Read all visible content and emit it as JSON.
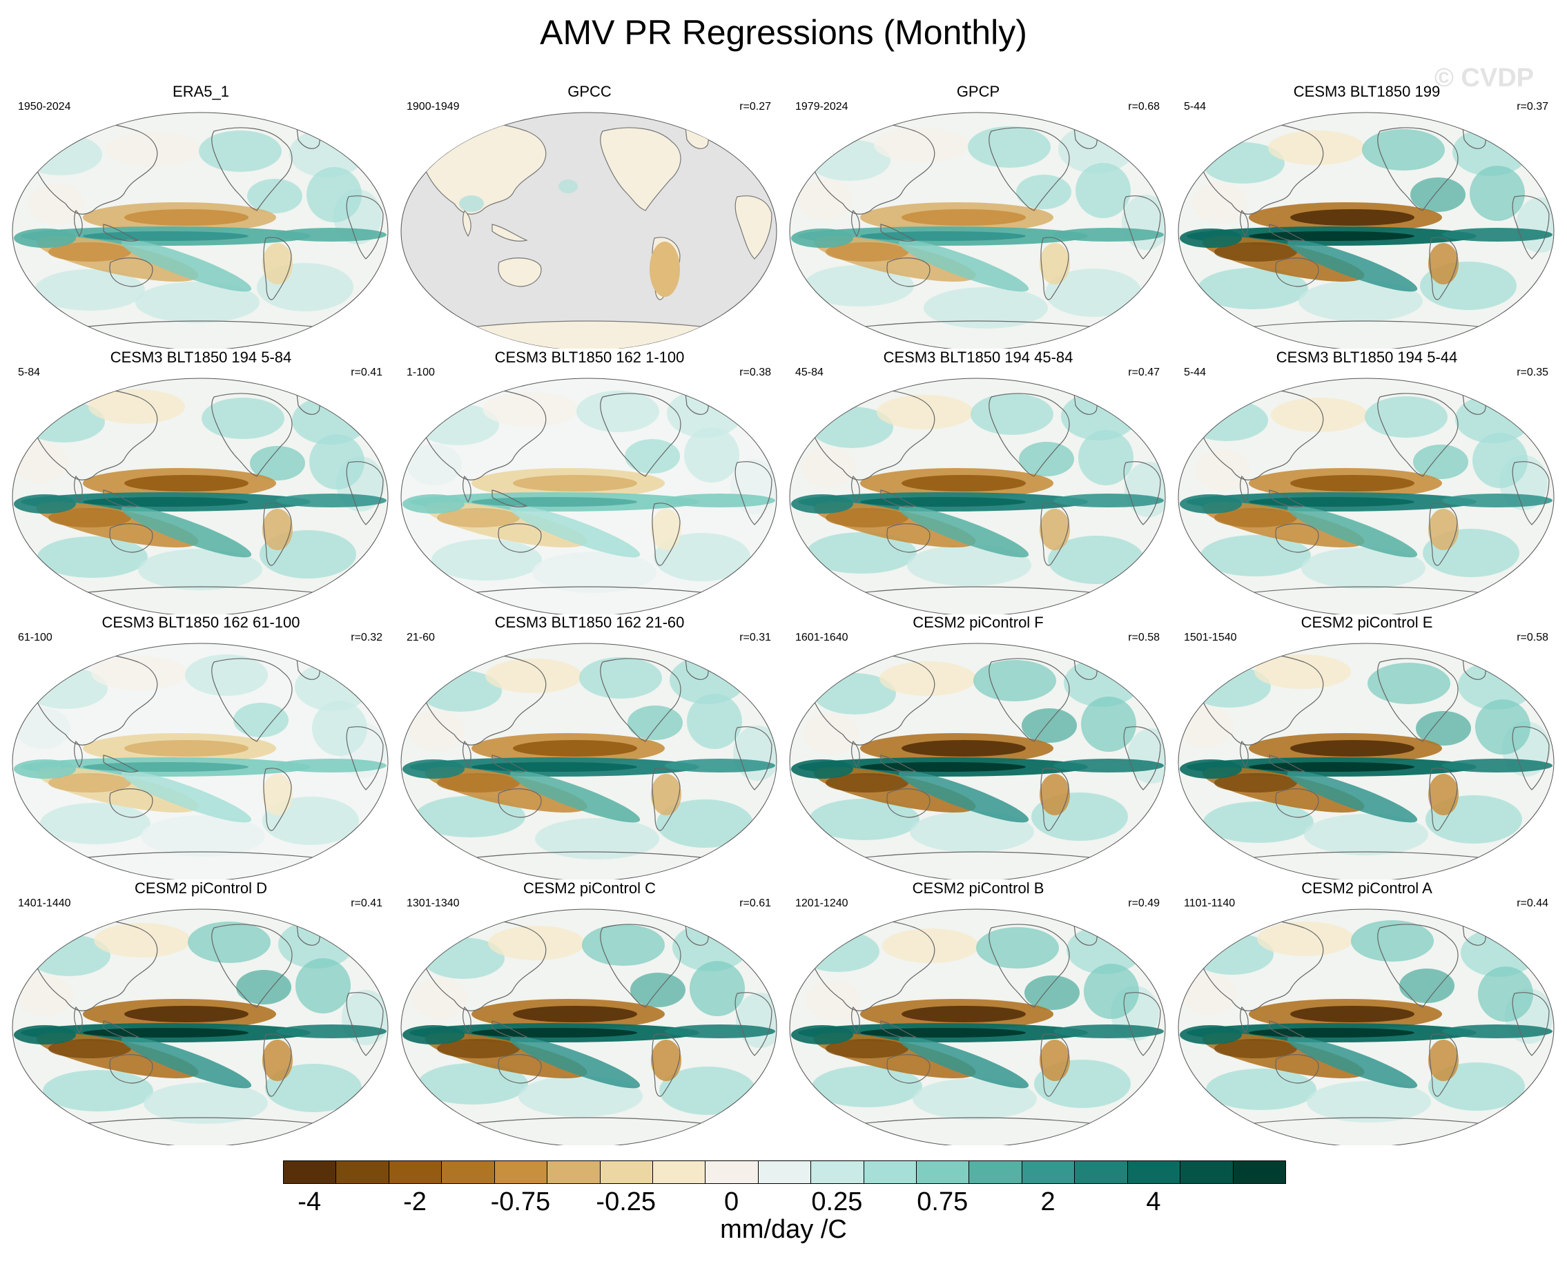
{
  "title": "AMV PR Regressions (Monthly)",
  "watermark": "© CVDP",
  "panels": [
    {
      "title": "ERA5_1",
      "period": "1950-2024",
      "r": "",
      "style": "obs"
    },
    {
      "title": "GPCC",
      "period": "1900-1949",
      "r": "r=0.27",
      "style": "landonly"
    },
    {
      "title": "GPCP",
      "period": "1979-2024",
      "r": "r=0.68",
      "style": "obs"
    },
    {
      "title": "CESM3 BLT1850 199",
      "period": "5-44",
      "r": "r=0.37",
      "style": "strong"
    },
    {
      "title": "CESM3 BLT1850 194 5-84",
      "period": "5-84",
      "r": "r=0.41",
      "style": "model"
    },
    {
      "title": "CESM3 BLT1850 162 1-100",
      "period": "1-100",
      "r": "r=0.38",
      "style": "weak"
    },
    {
      "title": "CESM3 BLT1850 194 45-84",
      "period": "45-84",
      "r": "r=0.47",
      "style": "model"
    },
    {
      "title": "CESM3 BLT1850 194 5-44",
      "period": "5-44",
      "r": "r=0.35",
      "style": "model"
    },
    {
      "title": "CESM3 BLT1850 162 61-100",
      "period": "61-100",
      "r": "r=0.32",
      "style": "weak"
    },
    {
      "title": "CESM3 BLT1850 162 21-60",
      "period": "21-60",
      "r": "r=0.31",
      "style": "model"
    },
    {
      "title": "CESM2 piControl F",
      "period": "1601-1640",
      "r": "r=0.58",
      "style": "strong"
    },
    {
      "title": "CESM2 piControl E",
      "period": "1501-1540",
      "r": "r=0.58",
      "style": "strong"
    },
    {
      "title": "CESM2 piControl D",
      "period": "1401-1440",
      "r": "r=0.41",
      "style": "strong"
    },
    {
      "title": "CESM2 piControl C",
      "period": "1301-1340",
      "r": "r=0.61",
      "style": "strong"
    },
    {
      "title": "CESM2 piControl B",
      "period": "1201-1240",
      "r": "r=0.49",
      "style": "strong"
    },
    {
      "title": "CESM2 piControl A",
      "period": "1101-1140",
      "r": "r=0.44",
      "style": "strong"
    }
  ],
  "colorbar": {
    "colors": [
      "#573009",
      "#7a4a0c",
      "#955b12",
      "#b07425",
      "#c88f3f",
      "#d9b26f",
      "#ecd7a3",
      "#f5e9c9",
      "#f5f1ea",
      "#e8f2f1",
      "#c9eae6",
      "#a6dfd7",
      "#80cdc1",
      "#56b0a3",
      "#35978f",
      "#1f8178",
      "#0b6b60",
      "#055448",
      "#013c30"
    ],
    "labels": [
      "-4",
      "-2",
      "-0.75",
      "-0.25",
      "0",
      "0.25",
      "0.75",
      "2",
      "4"
    ],
    "label_boundaries": [
      2,
      4,
      6,
      8,
      10,
      12,
      14,
      16,
      18
    ],
    "units": "mm/day /C"
  }
}
